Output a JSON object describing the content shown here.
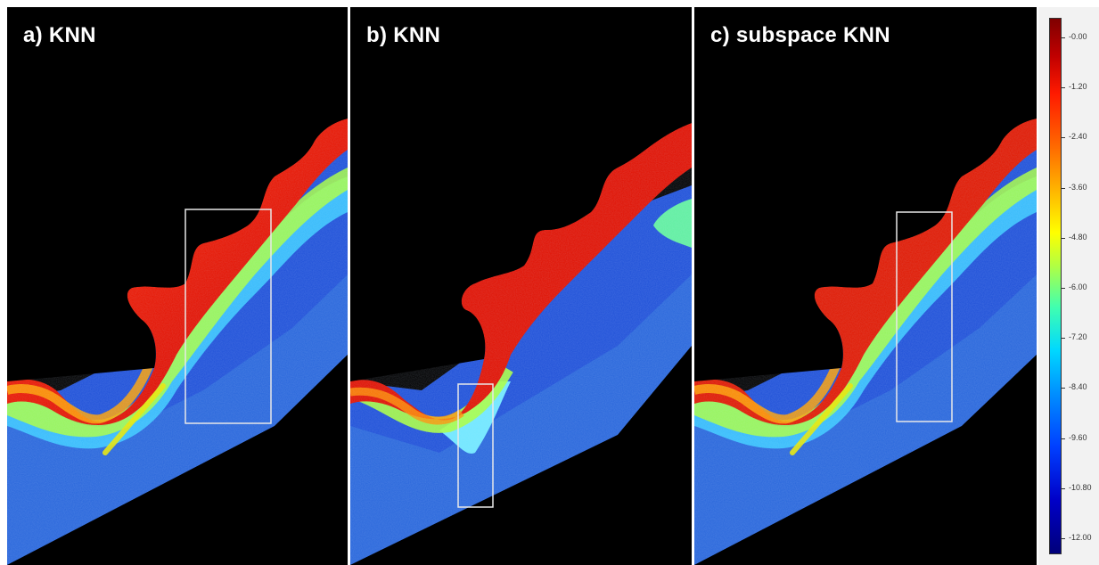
{
  "panels": [
    {
      "title": "a) KNN"
    },
    {
      "title": "b) KNN"
    },
    {
      "title": "c) subspace KNN"
    }
  ],
  "colorbar": {
    "ticks": [
      "-0.00",
      "-1.20",
      "-2.40",
      "-3.60",
      "-4.80",
      "-6.00",
      "-7.20",
      "-8.40",
      "-9.60",
      "-10.80",
      "-12.00"
    ],
    "colors": {
      "max": "#7f0000",
      "mid": "#ffff00",
      "min": "#00007a"
    }
  }
}
